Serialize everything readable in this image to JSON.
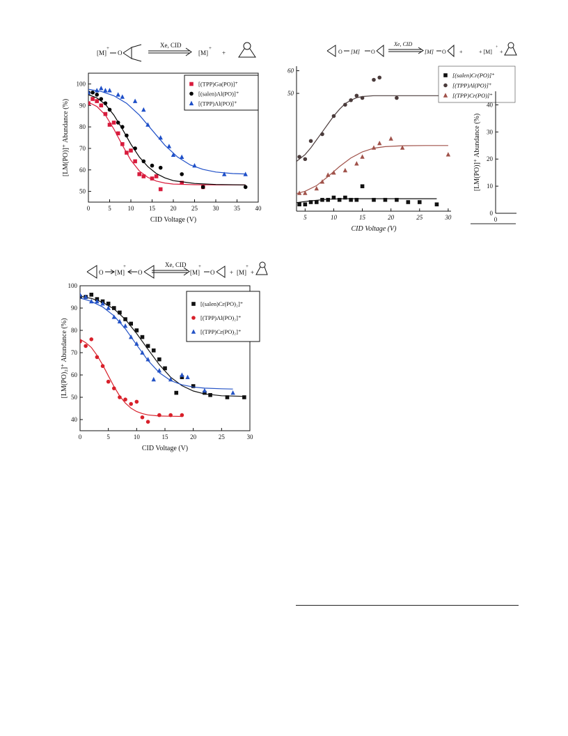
{
  "chart_data": [
    {
      "type": "scatter",
      "id": "p1",
      "scheme": {
        "left": "[M]",
        "arrow": "Xe, CID",
        "right": "[M]",
        "plus": "+"
      },
      "xlabel": "CID Voltage (V)",
      "ylabel": "[LM(PO)]⁺ Abundance  (%)",
      "xlim": [
        0,
        40
      ],
      "ylim": [
        45,
        105
      ],
      "xticks": [
        0,
        5,
        10,
        15,
        20,
        25,
        30,
        35,
        40
      ],
      "yticks": [
        50,
        60,
        70,
        80,
        90,
        100
      ],
      "legend_position": "top-right",
      "series": [
        {
          "name": "[(TPP)Ga(PO)]⁺",
          "color": "#d81b3c",
          "marker": "square",
          "x": [
            0,
            1,
            2,
            3,
            4,
            5,
            6,
            7,
            8,
            9,
            10,
            11,
            12,
            13,
            15,
            16,
            17,
            22,
            27
          ],
          "y": [
            91,
            93,
            92,
            90,
            86,
            81,
            82,
            77,
            72,
            68,
            69,
            64,
            58,
            57,
            56,
            57,
            51,
            54,
            52
          ],
          "fit_x": [
            0,
            2,
            4,
            6,
            8,
            10,
            12,
            14,
            16,
            18,
            20,
            25,
            30,
            37
          ],
          "fit_y": [
            91.5,
            89.5,
            85.5,
            79,
            71.5,
            64.5,
            59.5,
            56.5,
            54.8,
            53.9,
            53.4,
            53.1,
            53,
            53
          ]
        },
        {
          "name": "[(salen)Al(PO)]⁺",
          "color": "#000000",
          "marker": "circle",
          "x": [
            0,
            1,
            2,
            3,
            4,
            5,
            7,
            8,
            9,
            11,
            13,
            15,
            17,
            22,
            27,
            37
          ],
          "y": [
            96,
            96,
            95,
            93,
            91,
            88,
            82,
            80,
            76,
            70,
            64,
            62,
            61,
            58,
            52,
            52
          ],
          "fit_x": [
            0,
            2,
            4,
            6,
            8,
            10,
            12,
            14,
            16,
            18,
            20,
            25,
            30,
            37
          ],
          "fit_y": [
            95,
            93.5,
            90.5,
            85.5,
            79,
            72,
            66,
            61.5,
            58.3,
            56.3,
            55,
            53.7,
            53.2,
            53
          ]
        },
        {
          "name": "[(TPP)Al(PO)]⁺",
          "color": "#1e4fc8",
          "marker": "triangle",
          "x": [
            0,
            2,
            3,
            4,
            5,
            7,
            8,
            11,
            13,
            14,
            17,
            19,
            20,
            22,
            25,
            32,
            37
          ],
          "y": [
            96,
            97,
            98,
            97,
            97,
            95,
            94,
            92,
            88,
            81,
            75,
            71,
            67,
            66,
            62,
            58,
            58
          ],
          "fit_x": [
            0,
            3,
            6,
            9,
            12,
            15,
            18,
            21,
            24,
            27,
            30,
            34,
            37
          ],
          "fit_y": [
            97.5,
            96.5,
            94.5,
            91,
            85.5,
            78.5,
            71.5,
            66,
            62.3,
            60.2,
            59,
            58.3,
            58.1
          ]
        }
      ]
    },
    {
      "type": "scatter",
      "id": "p2",
      "scheme": {
        "arrow": "Xe, CID",
        "left": "[M]",
        "right": "[M]",
        "plus": "+"
      },
      "xlabel": "CID Voltage (V)",
      "ylabel": "",
      "xlim": [
        3.5,
        30.5
      ],
      "ylim": [
        -2,
        62
      ],
      "xticks": [
        5,
        10,
        15,
        20,
        25,
        30
      ],
      "yticks": [
        50,
        60
      ],
      "legend_position": "top-right",
      "series": [
        {
          "name": "[(salen)Cr(PO)]⁺",
          "color": "#111111",
          "marker": "square",
          "x": [
            4,
            5,
            6,
            7,
            8,
            9,
            10,
            11,
            12,
            13,
            14,
            15,
            17,
            19,
            21,
            23,
            25,
            28
          ],
          "y": [
            1,
            1,
            2,
            2,
            3,
            3,
            4,
            3,
            4,
            3,
            3,
            9,
            3,
            3,
            3,
            2,
            2,
            1
          ],
          "fit_x": [
            3.5,
            6,
            9,
            12,
            15,
            20,
            25,
            28
          ],
          "fit_y": [
            1.8,
            2.6,
            3.3,
            3.5,
            3.5,
            3.5,
            3.5,
            3.5
          ]
        },
        {
          "name": "[(TPP)Al(PO)]⁺",
          "color": "#4a3b3b",
          "marker": "circle",
          "x": [
            4,
            5,
            6,
            8,
            10,
            12,
            13,
            14,
            15,
            17,
            18,
            21
          ],
          "y": [
            22,
            21,
            29,
            32,
            40,
            45,
            47,
            49,
            48,
            56,
            57,
            48
          ],
          "fit_x": [
            3.5,
            5,
            6,
            7,
            8,
            9,
            10,
            11,
            12,
            13,
            14,
            15,
            17,
            20,
            25,
            30
          ],
          "fit_y": [
            20,
            23,
            26,
            29.5,
            33,
            36.5,
            40,
            43,
            45.5,
            47,
            48.1,
            48.6,
            49,
            49,
            49,
            49
          ]
        },
        {
          "name": "[(TPP)Cr(PO)]⁺",
          "color": "#a0524a",
          "marker": "triangle",
          "x": [
            4,
            5,
            7,
            8,
            9,
            10,
            12,
            14,
            15,
            17,
            18,
            20,
            22,
            30
          ],
          "y": [
            6,
            6,
            8,
            11,
            14,
            15,
            16,
            19,
            22,
            26,
            28,
            30,
            26,
            23
          ],
          "fit_x": [
            3.5,
            5,
            7,
            9,
            11,
            13,
            15,
            17,
            19,
            22,
            26,
            30
          ],
          "fit_y": [
            5.8,
            6.8,
            9.3,
            13.3,
            17.7,
            21.5,
            24.2,
            25.8,
            26.5,
            26.9,
            27,
            27
          ]
        }
      ]
    },
    {
      "type": "scatter",
      "id": "p3",
      "xlabel": "",
      "ylabel": "[LM(PO)]⁺ Abundance  (%)",
      "xlim": [
        0,
        5
      ],
      "ylim": [
        0,
        45
      ],
      "xticks": [
        0
      ],
      "yticks": [
        0,
        10,
        20,
        30,
        40
      ],
      "series": []
    },
    {
      "type": "scatter",
      "id": "p4",
      "scheme": {
        "arrow": "Xe, CID",
        "left": "[M]",
        "right": "[M]",
        "plus": "+"
      },
      "xlabel": "CID Voltage (V)",
      "ylabel": "[LM(PO)₂]⁺ Abundance (%)",
      "xlim": [
        0,
        30
      ],
      "ylim": [
        35,
        100
      ],
      "xticks": [
        0,
        5,
        10,
        15,
        20,
        25,
        30
      ],
      "yticks": [
        40,
        50,
        60,
        70,
        80,
        90,
        100
      ],
      "legend_position": "top-right",
      "series": [
        {
          "name": "[(salen)Cr(PO)₂]⁺",
          "color": "#111111",
          "marker": "square",
          "x": [
            0,
            1,
            2,
            3,
            4,
            5,
            6,
            7,
            8,
            9,
            10,
            11,
            12,
            13,
            14,
            15,
            17,
            18,
            20,
            22,
            23,
            26,
            29
          ],
          "y": [
            95,
            95,
            96,
            94,
            93,
            92,
            90,
            88,
            85,
            83,
            80,
            77,
            73,
            71,
            67,
            63,
            52,
            59,
            55,
            52,
            51,
            50,
            50
          ],
          "fit_x": [
            0,
            2,
            4,
            6,
            8,
            10,
            12,
            14,
            16,
            18,
            20,
            22,
            25,
            29
          ],
          "fit_y": [
            95.3,
            94.3,
            92.6,
            89.6,
            84.9,
            78.6,
            71.5,
            64.6,
            59,
            55.2,
            52.8,
            51.5,
            50.7,
            50.4
          ]
        },
        {
          "name": "[(TPP)Al(PO)₂]⁺",
          "color": "#d8202a",
          "marker": "circle",
          "x": [
            0,
            1,
            2,
            3,
            4,
            5,
            6,
            7,
            8,
            9,
            10,
            11,
            12,
            14,
            16,
            18
          ],
          "y": [
            75,
            73,
            76,
            68,
            64,
            57,
            54,
            50,
            49,
            47,
            48,
            41,
            39,
            42,
            42,
            42
          ],
          "fit_x": [
            0,
            1,
            2,
            3,
            4,
            5,
            6,
            7,
            8,
            9,
            10,
            11,
            12,
            14,
            16,
            18
          ],
          "fit_y": [
            76,
            74.5,
            72.3,
            68.8,
            64.5,
            59.6,
            54.8,
            50.6,
            47.4,
            45.1,
            43.6,
            42.7,
            42.1,
            41.6,
            41.5,
            41.4
          ]
        },
        {
          "name": "[(TPP)Cr(PO)₂]⁺",
          "color": "#2453c6",
          "marker": "triangle",
          "x": [
            0,
            1,
            2,
            3,
            4,
            5,
            6,
            7,
            8,
            9,
            10,
            11,
            12,
            13,
            14,
            16,
            18,
            19,
            22,
            27
          ],
          "y": [
            96,
            95,
            93,
            93,
            92,
            90,
            86,
            84,
            82,
            77,
            74,
            70,
            67,
            58,
            62,
            58,
            60,
            59,
            53,
            52
          ],
          "fit_x": [
            0,
            2,
            4,
            6,
            8,
            10,
            12,
            14,
            16,
            18,
            20,
            22,
            25,
            27
          ],
          "fit_y": [
            94.5,
            93,
            90.5,
            86.5,
            80.7,
            73.5,
            66.5,
            61,
            57.5,
            55.6,
            54.6,
            54.1,
            53.8,
            53.7
          ]
        }
      ]
    }
  ]
}
